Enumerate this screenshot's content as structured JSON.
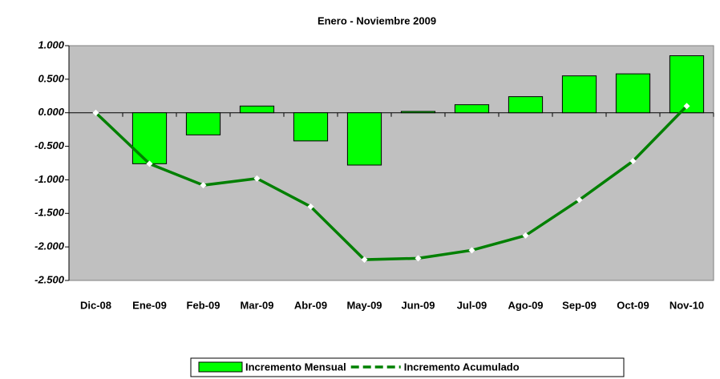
{
  "chart_data": {
    "type": "bar-line",
    "title": "Enero - Noviembre 2009",
    "categories": [
      "Dic-08",
      "Ene-09",
      "Feb-09",
      "Mar-09",
      "Abr-09",
      "May-09",
      "Jun-09",
      "Jul-09",
      "Ago-09",
      "Sep-09",
      "Oct-09",
      "Nov-10"
    ],
    "series": [
      {
        "name": "Incremento Mensual",
        "type": "bar",
        "color": "#00ff00",
        "values": [
          null,
          -0.76,
          -0.33,
          0.1,
          -0.42,
          -0.78,
          0.02,
          0.12,
          0.24,
          0.55,
          0.58,
          0.85
        ]
      },
      {
        "name": "Incremento Acumulado",
        "type": "line",
        "color": "#008000",
        "values": [
          0,
          -0.76,
          -1.08,
          -0.98,
          -1.4,
          -2.19,
          -2.17,
          -2.05,
          -1.83,
          -1.3,
          -0.72,
          0.1
        ]
      }
    ],
    "ylim": [
      -2.5,
      1.0
    ],
    "yticks": [
      {
        "value": -2.5,
        "label": "-2.500"
      },
      {
        "value": -2.0,
        "label": "-2.000"
      },
      {
        "value": -1.5,
        "label": "-1.500"
      },
      {
        "value": -1.0,
        "label": "-1.000"
      },
      {
        "value": -0.5,
        "label": "-0.500"
      },
      {
        "value": 0,
        "label": "0.000"
      },
      {
        "value": 0.5,
        "label": "0.500"
      },
      {
        "value": 1.0,
        "label": "1.000"
      }
    ],
    "legend": "bottom"
  }
}
